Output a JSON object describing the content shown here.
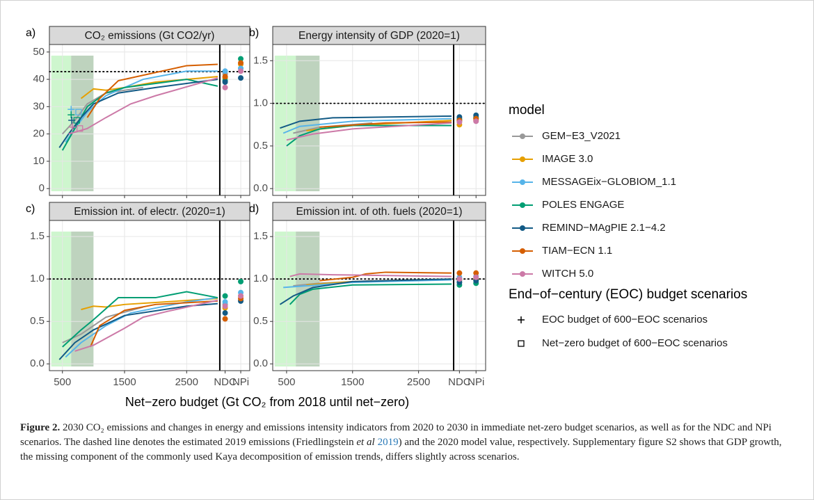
{
  "legend_title": "model",
  "models": [
    {
      "name": "GEM−E3_V2021",
      "color": "#999999"
    },
    {
      "name": "IMAGE 3.0",
      "color": "#E69F00"
    },
    {
      "name": "MESSAGEix−GLOBIOM_1.1",
      "color": "#56B4E9"
    },
    {
      "name": "POLES ENGAGE",
      "color": "#009E73"
    },
    {
      "name": "REMIND−MAgPIE 2.1−4.2",
      "color": "#125A85"
    },
    {
      "name": "TIAM−ECN 1.1",
      "color": "#D55E00"
    },
    {
      "name": "WITCH 5.0",
      "color": "#CC79A7"
    }
  ],
  "eoc_legend": {
    "title": "End−of−century (EOC) budget scenarios",
    "items": [
      "EOC budget of 600−EOC scenarios",
      "Net−zero budget of 600−EOC scenarios"
    ]
  },
  "xlabel": "Net−zero budget (Gt CO₂ from 2018 until net−zero)",
  "xlim": [
    290,
    3000
  ],
  "xticks": [
    500,
    1500,
    2500
  ],
  "x_categories": [
    "NDC",
    "NPi"
  ],
  "shading": [
    {
      "from": 320,
      "to": 640,
      "color": "#c6f5c6"
    },
    {
      "from": 640,
      "to": 1000,
      "color": "#b3cbb3"
    }
  ],
  "chart_data": [
    {
      "type": "line",
      "label": "a)",
      "title": "CO₂ emissions (Gt CO2/yr)",
      "ylim": [
        -2.5,
        52.75
      ],
      "yticks": [
        0,
        10,
        20,
        30,
        40,
        50
      ],
      "hline": 42.8,
      "grid": true,
      "series": [
        {
          "x": [
            500,
            700,
            900,
            1200,
            1800
          ],
          "values": [
            20,
            25,
            31,
            35,
            37
          ],
          "ndc": 42,
          "npi": 44
        },
        {
          "x": [
            800,
            1000,
            1200,
            1500,
            2000,
            3000
          ],
          "values": [
            33,
            36.5,
            36,
            37,
            39,
            41
          ],
          "ndc": 40.5,
          "npi": 45.5
        },
        {
          "x": [
            550,
            700,
            900,
            1200,
            1800,
            2500,
            3000
          ],
          "values": [
            17,
            22,
            28,
            34,
            40,
            43,
            43
          ],
          "ndc": 43,
          "npi": 44,
          "eoc": {
            "x": 640,
            "value": 29
          },
          "net_zero": {
            "x": 760,
            "value": 28
          }
        },
        {
          "x": [
            500,
            700,
            900,
            1200,
            1500,
            2500,
            3000
          ],
          "values": [
            14,
            22,
            30,
            35,
            37,
            40,
            37.5
          ],
          "ndc": 39.5,
          "npi": 47.5,
          "eoc": {
            "x": 640,
            "value": 27
          },
          "net_zero": {
            "x": 730,
            "value": 25
          }
        },
        {
          "x": [
            450,
            600,
            800,
            1000,
            1400,
            2000,
            3000
          ],
          "values": [
            15,
            20,
            26,
            31,
            35,
            37,
            40
          ],
          "ndc": 39,
          "npi": 40.5,
          "eoc": {
            "x": 650,
            "value": 25
          }
        },
        {
          "x": [
            900,
            1100,
            1400,
            2000,
            2500,
            3000
          ],
          "values": [
            26,
            33,
            39.5,
            42.5,
            45,
            45.5
          ],
          "ndc": 41,
          "npi": 46
        },
        {
          "x": [
            600,
            900,
            1200,
            1600,
            2000,
            3000
          ],
          "values": [
            20,
            22,
            26,
            31,
            34,
            40.5
          ],
          "ndc": 37,
          "npi": 43,
          "eoc": {
            "x": 660,
            "value": 22.5
          },
          "net_zero": {
            "x": 780,
            "value": 22
          }
        }
      ]
    },
    {
      "type": "line",
      "label": "b)",
      "title": "Energy intensity of GDP (2020=1)",
      "ylim": [
        -0.08,
        1.69
      ],
      "yticks": [
        {
          "value": 0,
          "label": "0.0"
        },
        0.5,
        {
          "value": 1,
          "label": "1.0"
        },
        1.5
      ],
      "hline": 1,
      "grid": true,
      "series": [
        {
          "x": [
            600,
            1000,
            1800
          ],
          "values": [
            0.65,
            0.72,
            0.77
          ],
          "ndc": 0.79,
          "npi": 0.82
        },
        {
          "x": [
            800,
            1500,
            3000
          ],
          "values": [
            0.68,
            0.74,
            0.8
          ],
          "ndc": 0.75,
          "npi": 0.8
        },
        {
          "x": [
            450,
            700,
            1500,
            3000
          ],
          "values": [
            0.65,
            0.73,
            0.79,
            0.82
          ],
          "ndc": 0.82,
          "npi": 0.84
        },
        {
          "x": [
            500,
            700,
            1000,
            1500,
            3000
          ],
          "values": [
            0.5,
            0.62,
            0.7,
            0.74,
            0.74
          ],
          "ndc": 0.81,
          "npi": 0.83
        },
        {
          "x": [
            400,
            700,
            1200,
            3000
          ],
          "values": [
            0.71,
            0.79,
            0.83,
            0.85
          ],
          "ndc": 0.84,
          "npi": 0.86
        },
        {
          "x": [
            1000,
            2000,
            3000
          ],
          "values": [
            0.72,
            0.77,
            0.78
          ],
          "ndc": 0.8,
          "npi": 0.82
        },
        {
          "x": [
            500,
            900,
            1500,
            3000
          ],
          "values": [
            0.57,
            0.64,
            0.7,
            0.77
          ],
          "ndc": 0.78,
          "npi": 0.79
        }
      ]
    },
    {
      "type": "line",
      "label": "c)",
      "title": "Emission int. of electr. (2020=1)",
      "ylim": [
        -0.08,
        1.69
      ],
      "yticks": [
        {
          "value": 0,
          "label": "0.0"
        },
        0.5,
        {
          "value": 1,
          "label": "1.0"
        },
        1.5
      ],
      "hline": 1,
      "grid": true,
      "series": [
        {
          "x": [
            500,
            800,
            1200,
            1800
          ],
          "values": [
            0.25,
            0.35,
            0.55,
            0.67
          ],
          "ndc": 0.7,
          "npi": 0.75
        },
        {
          "x": [
            800,
            1000,
            1200,
            1500,
            3000
          ],
          "values": [
            0.64,
            0.68,
            0.67,
            0.7,
            0.77
          ],
          "ndc": 0.66,
          "npi": 0.8
        },
        {
          "x": [
            550,
            800,
            1200,
            1600,
            2500,
            3000
          ],
          "values": [
            0.08,
            0.25,
            0.45,
            0.6,
            0.73,
            0.78
          ],
          "ndc": 0.73,
          "npi": 0.84
        },
        {
          "x": [
            500,
            800,
            1000,
            1400,
            2000,
            2500,
            3000
          ],
          "values": [
            0.2,
            0.4,
            0.52,
            0.78,
            0.78,
            0.85,
            0.78
          ],
          "ndc": 0.8,
          "npi": 0.97
        },
        {
          "x": [
            450,
            700,
            1000,
            1500,
            2500,
            3000
          ],
          "values": [
            0.05,
            0.25,
            0.4,
            0.57,
            0.68,
            0.71
          ],
          "ndc": 0.6,
          "npi": 0.74
        },
        {
          "x": [
            950,
            1100,
            1500,
            2000,
            3000
          ],
          "values": [
            0.2,
            0.45,
            0.63,
            0.7,
            0.74
          ],
          "ndc": 0.53,
          "npi": 0.77
        },
        {
          "x": [
            700,
            1000,
            1500,
            1800,
            2200,
            3000
          ],
          "values": [
            0.15,
            0.22,
            0.42,
            0.55,
            0.62,
            0.75
          ],
          "ndc": 0.68,
          "npi": 0.8
        }
      ]
    },
    {
      "type": "line",
      "label": "d)",
      "title": "Emission int. of oth. fuels (2020=1)",
      "ylim": [
        -0.08,
        1.69
      ],
      "yticks": [
        {
          "value": 0,
          "label": "0.0"
        },
        0.5,
        {
          "value": 1,
          "label": "1.0"
        },
        1.5
      ],
      "hline": 1,
      "grid": true,
      "series": [
        {
          "x": [
            600,
            1000,
            1800
          ],
          "values": [
            0.92,
            0.95,
            0.98
          ],
          "ndc": 0.98,
          "npi": 0.99
        },
        {
          "x": [
            800,
            1500,
            3000
          ],
          "values": [
            0.93,
            0.97,
            1.0
          ],
          "ndc": 1.0,
          "npi": 1.0
        },
        {
          "x": [
            450,
            800,
            1500,
            3000
          ],
          "values": [
            0.9,
            0.92,
            0.96,
            0.99
          ],
          "ndc": 1.02,
          "npi": 1.03
        },
        {
          "x": [
            550,
            700,
            900,
            1500,
            3000
          ],
          "values": [
            0.7,
            0.82,
            0.88,
            0.93,
            0.94
          ],
          "ndc": 0.93,
          "npi": 0.95
        },
        {
          "x": [
            400,
            600,
            900,
            1500,
            3000
          ],
          "values": [
            0.7,
            0.8,
            0.9,
            0.97,
            1.0
          ],
          "ndc": 0.96,
          "npi": 0.98
        },
        {
          "x": [
            1000,
            1500,
            1700,
            2000,
            3000
          ],
          "values": [
            0.98,
            1.02,
            1.06,
            1.08,
            1.07
          ],
          "ndc": 1.07,
          "npi": 1.07
        },
        {
          "x": [
            550,
            700,
            1200,
            3000
          ],
          "values": [
            1.03,
            1.06,
            1.05,
            1.03
          ],
          "ndc": 1.0,
          "npi": 1.02
        }
      ]
    }
  ],
  "caption": {
    "label": "Figure 2.",
    "text1": "2030 CO₂ emissions and changes in energy and emissions intensity indicators from 2020 to 2030 in immediate net-zero budget scenarios, as well as for the NDC and NPi scenarios. The dashed line denotes the estimated 2019 emissions (Friedlingstein ",
    "italic": "et al",
    "cite": "2019",
    "text2": ") and the 2020 model value, respectively. Supplementary figure S2 shows that GDP growth, the missing component of the commonly used Kaya decomposition of emission trends, differs slightly across scenarios."
  }
}
